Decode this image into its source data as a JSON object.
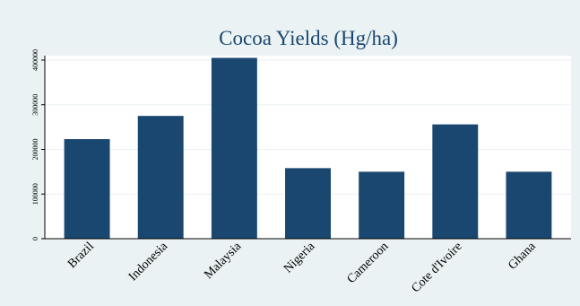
{
  "chart_data": {
    "type": "bar",
    "title": "Cocoa Yields (Hg/ha)",
    "xlabel": "",
    "ylabel": "",
    "categories": [
      "Brazil",
      "Indonesia",
      "Malaysia",
      "Nigeria",
      "Cameroon",
      "Cote d'Ivoire",
      "Ghana"
    ],
    "values": [
      223000,
      275000,
      405000,
      158000,
      150000,
      256000,
      150000
    ],
    "ylim": [
      0,
      410000
    ],
    "yticks": [
      0,
      100000,
      200000,
      300000,
      400000
    ],
    "ytick_labels": [
      "0",
      "100000",
      "200000",
      "300000",
      "400000"
    ],
    "grid": true,
    "colors": {
      "bar": "#1a476f",
      "background": "#eaf2f3",
      "plot_background": "#ffffff",
      "title": "#1a476f",
      "grid": "#eaf2f3"
    }
  }
}
